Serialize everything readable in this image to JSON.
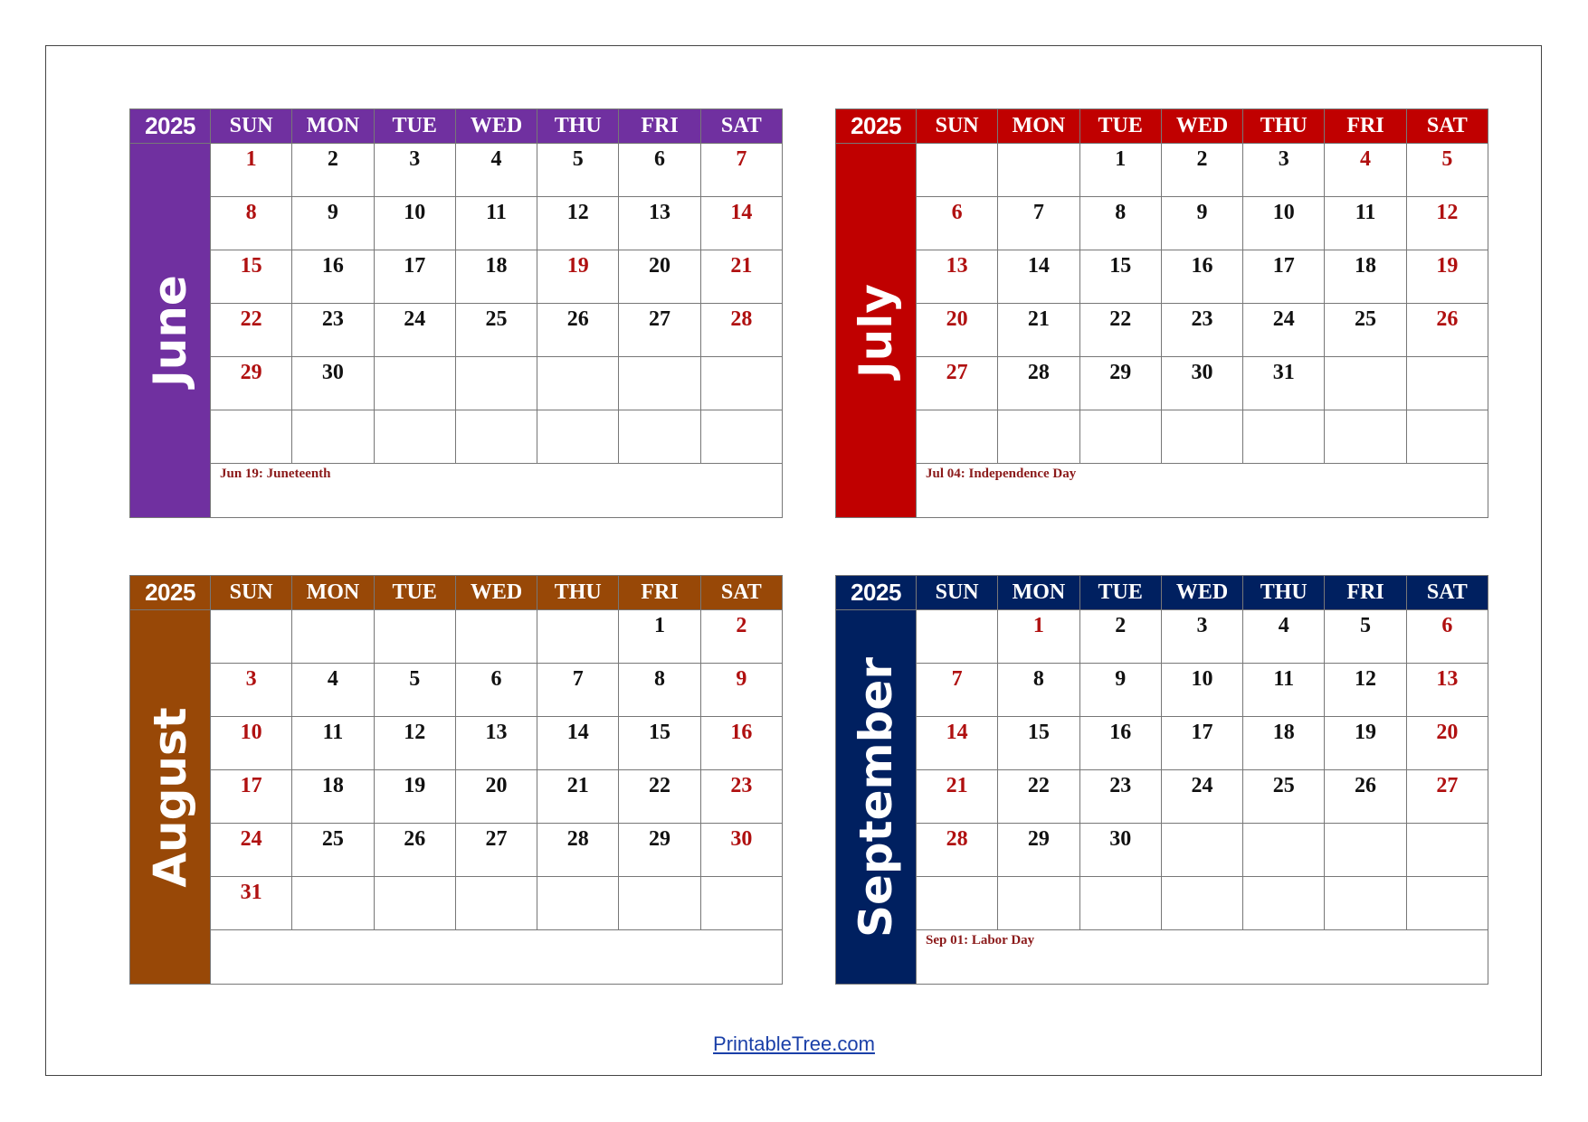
{
  "weekdays": [
    "SUN",
    "MON",
    "TUE",
    "WED",
    "THU",
    "FRI",
    "SAT"
  ],
  "months": [
    {
      "year": "2025",
      "name": "June",
      "color": "#7030A0",
      "weeks": [
        [
          "1",
          "2",
          "3",
          "4",
          "5",
          "6",
          "7"
        ],
        [
          "8",
          "9",
          "10",
          "11",
          "12",
          "13",
          "14"
        ],
        [
          "15",
          "16",
          "17",
          "18",
          "19",
          "20",
          "21"
        ],
        [
          "22",
          "23",
          "24",
          "25",
          "26",
          "27",
          "28"
        ],
        [
          "29",
          "30",
          "",
          "",
          "",
          "",
          ""
        ],
        [
          "",
          "",
          "",
          "",
          "",
          "",
          ""
        ]
      ],
      "holidays": [
        "19"
      ],
      "note": "Jun 19: Juneteenth"
    },
    {
      "year": "2025",
      "name": "July",
      "color": "#C00000",
      "weeks": [
        [
          "",
          "",
          "1",
          "2",
          "3",
          "4",
          "5"
        ],
        [
          "6",
          "7",
          "8",
          "9",
          "10",
          "11",
          "12"
        ],
        [
          "13",
          "14",
          "15",
          "16",
          "17",
          "18",
          "19"
        ],
        [
          "20",
          "21",
          "22",
          "23",
          "24",
          "25",
          "26"
        ],
        [
          "27",
          "28",
          "29",
          "30",
          "31",
          "",
          ""
        ],
        [
          "",
          "",
          "",
          "",
          "",
          "",
          ""
        ]
      ],
      "holidays": [
        "4"
      ],
      "note": "Jul 04: Independence Day"
    },
    {
      "year": "2025",
      "name": "August",
      "color": "#984807",
      "weeks": [
        [
          "",
          "",
          "",
          "",
          "",
          "1",
          "2"
        ],
        [
          "3",
          "4",
          "5",
          "6",
          "7",
          "8",
          "9"
        ],
        [
          "10",
          "11",
          "12",
          "13",
          "14",
          "15",
          "16"
        ],
        [
          "17",
          "18",
          "19",
          "20",
          "21",
          "22",
          "23"
        ],
        [
          "24",
          "25",
          "26",
          "27",
          "28",
          "29",
          "30"
        ],
        [
          "31",
          "",
          "",
          "",
          "",
          "",
          ""
        ]
      ],
      "holidays": [],
      "note": ""
    },
    {
      "year": "2025",
      "name": "September",
      "color": "#002060",
      "weeks": [
        [
          "",
          "1",
          "2",
          "3",
          "4",
          "5",
          "6"
        ],
        [
          "7",
          "8",
          "9",
          "10",
          "11",
          "12",
          "13"
        ],
        [
          "14",
          "15",
          "16",
          "17",
          "18",
          "19",
          "20"
        ],
        [
          "21",
          "22",
          "23",
          "24",
          "25",
          "26",
          "27"
        ],
        [
          "28",
          "29",
          "30",
          "",
          "",
          "",
          ""
        ],
        [
          "",
          "",
          "",
          "",
          "",
          "",
          ""
        ]
      ],
      "holidays": [
        "1"
      ],
      "note": "Sep 01: Labor Day"
    }
  ],
  "footer": {
    "link_text": "PrintableTree.com"
  }
}
